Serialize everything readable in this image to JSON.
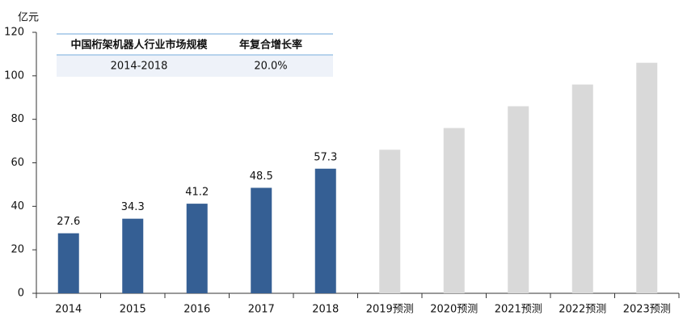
{
  "chart_data": {
    "type": "bar",
    "y_axis_label": "亿元",
    "categories": [
      "2014",
      "2015",
      "2016",
      "2017",
      "2018",
      "2019预测",
      "2020预测",
      "2021预测",
      "2022预测",
      "2023预测"
    ],
    "series": [
      {
        "color": "#355f94",
        "data_labels": true,
        "values": [
          27.6,
          34.3,
          41.2,
          48.5,
          57.3,
          null,
          null,
          null,
          null,
          null
        ]
      },
      {
        "color": "#d9d9d9",
        "data_labels": false,
        "values": [
          null,
          null,
          null,
          null,
          null,
          66,
          76,
          86,
          96,
          106
        ]
      }
    ],
    "ylim": [
      0,
      120
    ],
    "yticks": [
      0,
      20,
      40,
      60,
      80,
      100,
      120
    ],
    "grid": false
  },
  "table": {
    "header": [
      "中国桁架机器人行业市场规模",
      "年复合增长率"
    ],
    "rows": [
      [
        "2014-2018",
        "20.0%"
      ]
    ]
  }
}
